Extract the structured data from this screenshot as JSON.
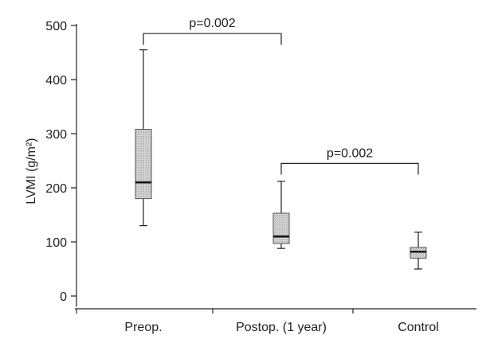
{
  "chart_data": {
    "type": "box",
    "ylabel": "LVMI (g/m²)",
    "ylim": [
      -20,
      500
    ],
    "yticks": [
      0,
      100,
      200,
      300,
      400,
      500
    ],
    "categories": [
      "Preop.",
      "Postop. (1 year)",
      "Control"
    ],
    "boxes": [
      {
        "category": "Preop.",
        "whisker_low": 130,
        "q1": 180,
        "median": 210,
        "q3": 308,
        "whisker_high": 455
      },
      {
        "category": "Postop. (1 year)",
        "whisker_low": 88,
        "q1": 97,
        "median": 110,
        "q3": 153,
        "whisker_high": 212
      },
      {
        "category": "Control",
        "whisker_low": 50,
        "q1": 70,
        "median": 82,
        "q3": 90,
        "whisker_high": 118
      }
    ],
    "annotations": [
      {
        "text": "p=0.002",
        "from": "Preop.",
        "to": "Postop. (1 year)",
        "level": 485
      },
      {
        "text": "p=0.002",
        "from": "Postop. (1 year)",
        "to": "Control",
        "level": 245
      }
    ],
    "grid": false,
    "colors": {
      "box_fill": "#c9c9c9",
      "line": "#222222"
    }
  }
}
